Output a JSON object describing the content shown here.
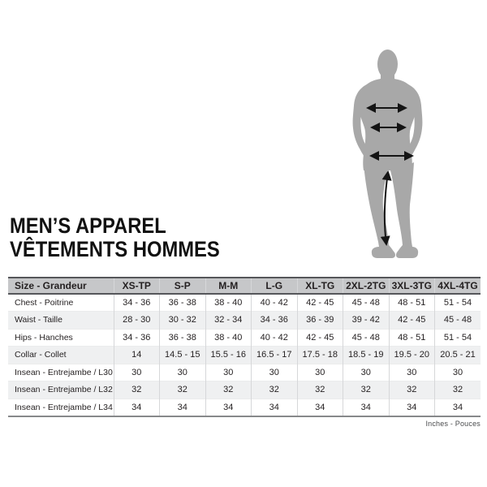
{
  "title": {
    "line1": "MEN’S APPAREL",
    "line2": "VÊTEMENTS HOMMES"
  },
  "figure": {
    "icon": "male-silhouette-measurement-diagram",
    "arrows": [
      "chest",
      "waist",
      "hips",
      "inseam"
    ]
  },
  "table": {
    "columns": [
      "Size - Grandeur",
      "XS-TP",
      "S-P",
      "M-M",
      "L-G",
      "XL-TG",
      "2XL-2TG",
      "3XL-3TG",
      "4XL-4TG"
    ],
    "rows": [
      {
        "label": "Chest - Poitrine",
        "values": [
          "34 - 36",
          "36 - 38",
          "38 - 40",
          "40 - 42",
          "42 - 45",
          "45 - 48",
          "48 - 51",
          "51 - 54"
        ]
      },
      {
        "label": "Waist - Taille",
        "values": [
          "28 - 30",
          "30 - 32",
          "32 - 34",
          "34 - 36",
          "36 - 39",
          "39 - 42",
          "42 - 45",
          "45 - 48"
        ]
      },
      {
        "label": "Hips - Hanches",
        "values": [
          "34 - 36",
          "36 - 38",
          "38 - 40",
          "40 - 42",
          "42 - 45",
          "45 - 48",
          "48 - 51",
          "51 - 54"
        ]
      },
      {
        "label": "Collar - Collet",
        "values": [
          "14",
          "14.5 - 15",
          "15.5 - 16",
          "16.5 - 17",
          "17.5 - 18",
          "18.5 - 19",
          "19.5 - 20",
          "20.5 - 21"
        ]
      },
      {
        "label": "Insean - Entrejambe / L30",
        "values": [
          "30",
          "30",
          "30",
          "30",
          "30",
          "30",
          "30",
          "30"
        ]
      },
      {
        "label": "Insean - Entrejambe / L32",
        "values": [
          "32",
          "32",
          "32",
          "32",
          "32",
          "32",
          "32",
          "32"
        ]
      },
      {
        "label": "Insean - Entrejambe / L34",
        "values": [
          "34",
          "34",
          "34",
          "34",
          "34",
          "34",
          "34",
          "34"
        ]
      }
    ],
    "units_note": "Inches - Pouces"
  },
  "colors": {
    "silhouette": "#a8a8a8",
    "arrow": "#141414",
    "header_bg": "#c6c7c9",
    "alt_row_bg": "#eff0f1",
    "border_dark": "#55565a",
    "border_mid": "#87898b",
    "border_light": "#d6d7d9",
    "text": "#231f20"
  }
}
